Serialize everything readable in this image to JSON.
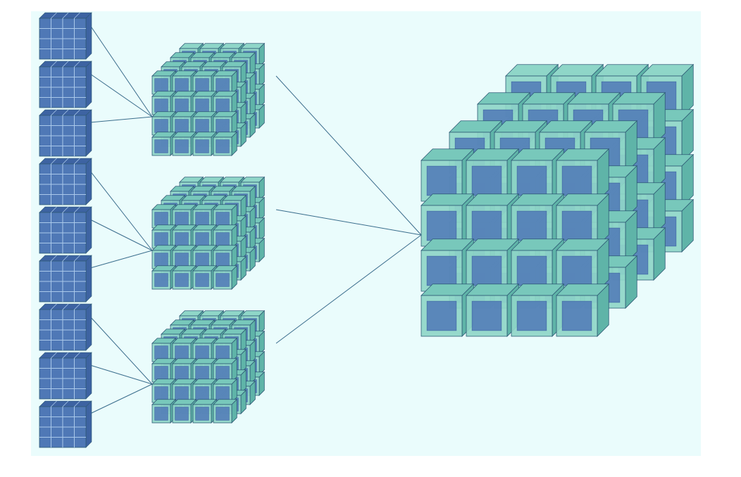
{
  "diagram": {
    "title": "",
    "levels": [
      {
        "name": "",
        "grid": 4,
        "count": 9
      },
      {
        "name": "",
        "grid": 4,
        "count": 3
      },
      {
        "name": "",
        "grid": 4,
        "count": 1
      }
    ],
    "connections": [
      {
        "from_level": 0,
        "to_level": 1,
        "groups": [
          [
            0,
            1,
            2
          ],
          [
            3,
            4,
            5
          ],
          [
            6,
            7,
            8
          ]
        ]
      },
      {
        "from_level": 1,
        "to_level": 2,
        "groups": [
          [
            0,
            1,
            2
          ]
        ]
      }
    ]
  },
  "colors": {
    "background": "#eafcfc",
    "page": "#ffffff",
    "cube_face_light": "#8fd6c8",
    "cube_face_mid": "#78c8bb",
    "cube_face_dark": "#5fb4a8",
    "inner_block": "#4f78b6",
    "inner_block_dark": "#3d63a2",
    "edge": "#2e5a75",
    "line": "#3a6d8c"
  }
}
